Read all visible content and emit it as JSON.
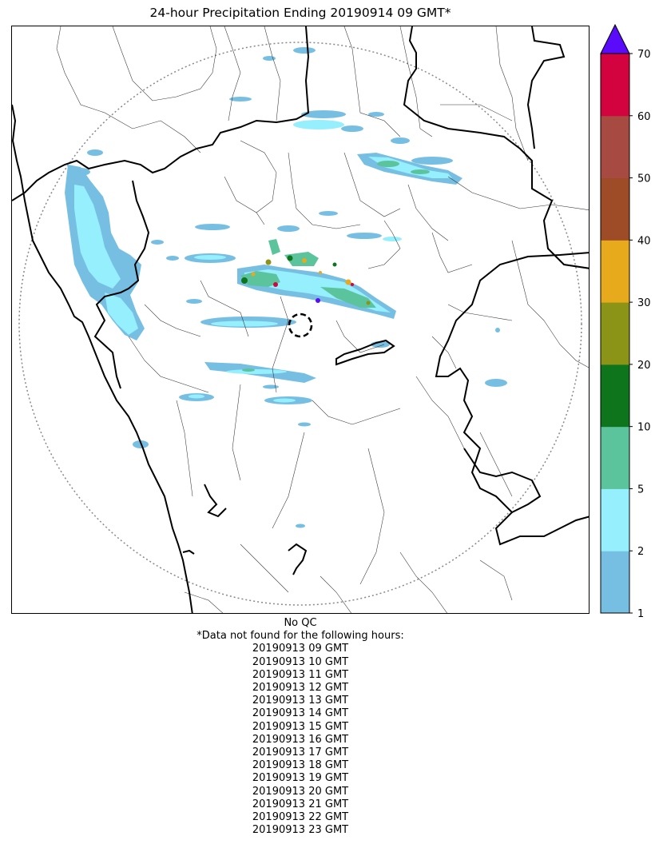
{
  "title": "24-hour Precipitation Ending 20190914 09 GMT*",
  "colorbar": {
    "levels": [
      1,
      2,
      5,
      10,
      20,
      30,
      40,
      50,
      60,
      70
    ],
    "colors": [
      "#76bfe3",
      "#95effd",
      "#5cc49c",
      "#0e751c",
      "#8c9418",
      "#e6aa1c",
      "#9e4b28",
      "#a74b42",
      "#d2033f"
    ],
    "extend_color": "#5a0bfa",
    "extend": "max"
  },
  "footer": {
    "qc_label": "No QC",
    "missing_header": "*Data not found for the following hours:",
    "missing_hours": [
      "20190913 09 GMT",
      "20190913 10 GMT",
      "20190913 11 GMT",
      "20190913 12 GMT",
      "20190913 13 GMT",
      "20190913 14 GMT",
      "20190913 15 GMT",
      "20190913 16 GMT",
      "20190913 17 GMT",
      "20190913 18 GMT",
      "20190913 19 GMT",
      "20190913 20 GMT",
      "20190913 21 GMT",
      "20190913 22 GMT",
      "20190913 23 GMT"
    ]
  }
}
